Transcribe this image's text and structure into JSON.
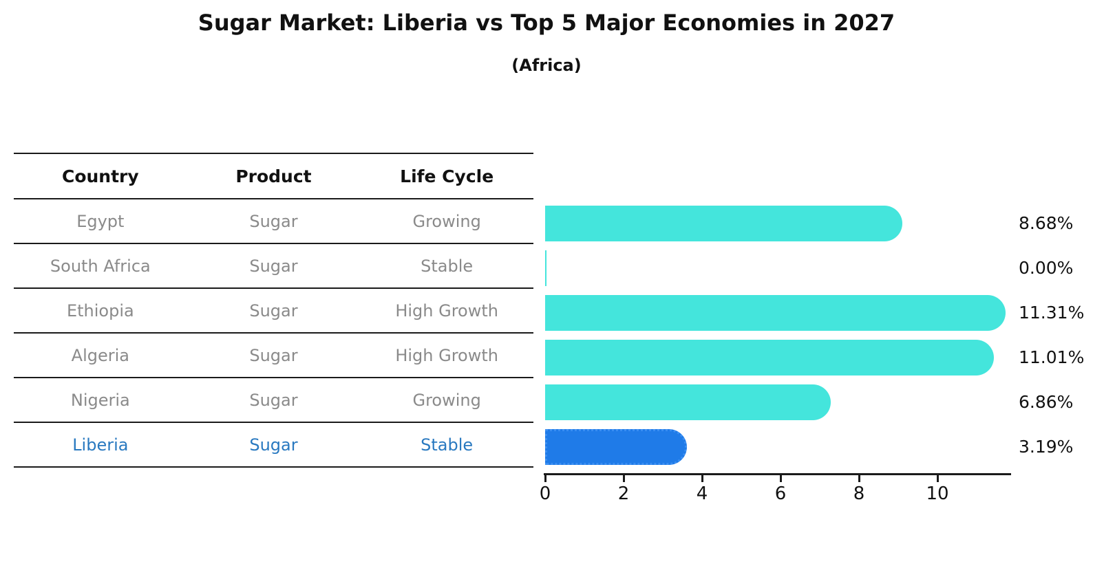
{
  "title": "Sugar Market: Liberia vs Top 5 Major Economies in 2027",
  "subtitle": "(Africa)",
  "table": {
    "headers": [
      "Country",
      "Product",
      "Life Cycle"
    ],
    "rows": [
      {
        "country": "Egypt",
        "product": "Sugar",
        "life_cycle": "Growing"
      },
      {
        "country": "South Africa",
        "product": "Sugar",
        "life_cycle": "Stable"
      },
      {
        "country": "Ethiopia",
        "product": "Sugar",
        "life_cycle": "High Growth"
      },
      {
        "country": "Algeria",
        "product": "Sugar",
        "life_cycle": "High Growth"
      },
      {
        "country": "Nigeria",
        "product": "Sugar",
        "life_cycle": "Growing"
      },
      {
        "country": "Liberia",
        "product": "Sugar",
        "life_cycle": "Stable"
      }
    ],
    "highlight_index": 5
  },
  "chart_data": {
    "type": "bar",
    "orientation": "horizontal",
    "title": "Sugar Market: Liberia vs Top 5 Major Economies in 2027",
    "subtitle": "(Africa)",
    "categories": [
      "Egypt",
      "South Africa",
      "Ethiopia",
      "Algeria",
      "Nigeria",
      "Liberia"
    ],
    "values": [
      8.68,
      0.0,
      11.31,
      11.01,
      6.86,
      3.19
    ],
    "value_labels": [
      "8.68%",
      "0.00%",
      "11.31%",
      "11.01%",
      "6.86%",
      "3.19%"
    ],
    "xticks": [
      0,
      2,
      4,
      6,
      8,
      10
    ],
    "xlim": [
      0,
      11.88
    ],
    "grid": false,
    "legend": false,
    "bar_color": "#44E5DC",
    "highlight_color": "#1F7BE8",
    "highlight_index": 5
  },
  "colors": {
    "bar_cyan": "#44E5DC",
    "bar_blue": "#1F7BE8",
    "highlight_text": "#2979C0",
    "table_text": "#8A8A8A",
    "heading_text": "#111111",
    "axis": "#1A1A1A"
  }
}
